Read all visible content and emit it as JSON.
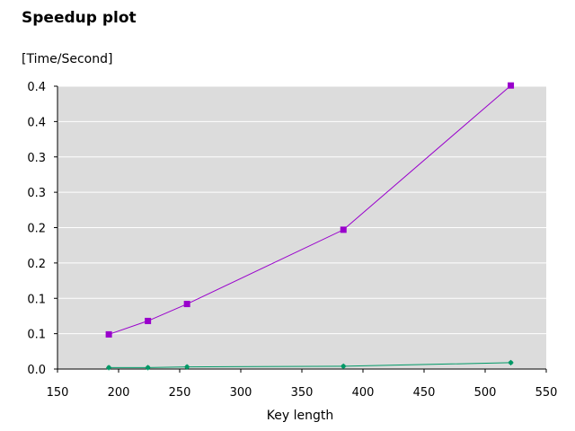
{
  "chart_data": {
    "type": "line",
    "title": "Speedup plot",
    "ylabel": "[Time/Second]",
    "xlabel": "Key length",
    "xlim": [
      150,
      550
    ],
    "ylim": [
      0,
      0.4
    ],
    "x_ticks": [
      150,
      200,
      250,
      300,
      350,
      400,
      450,
      500,
      550
    ],
    "y_ticks": [
      0.0,
      0.05,
      0.1,
      0.15,
      0.2,
      0.25,
      0.3,
      0.35,
      0.4
    ],
    "y_tick_labels": [
      "0.0",
      "0.1",
      "0.1",
      "0.2",
      "0.2",
      "0.3",
      "0.3",
      "0.4",
      "0.4"
    ],
    "grid": true,
    "plot_background": "#dcdcdc",
    "series": [
      {
        "color": "#9900cc",
        "marker": "square",
        "x": [
          192,
          224,
          256,
          384,
          521
        ],
        "y": [
          0.049,
          0.068,
          0.092,
          0.197,
          0.401
        ]
      },
      {
        "color": "#009966",
        "marker": "star",
        "x": [
          192,
          224,
          256,
          384,
          521
        ],
        "y": [
          0.002,
          0.002,
          0.003,
          0.004,
          0.009
        ]
      }
    ]
  }
}
